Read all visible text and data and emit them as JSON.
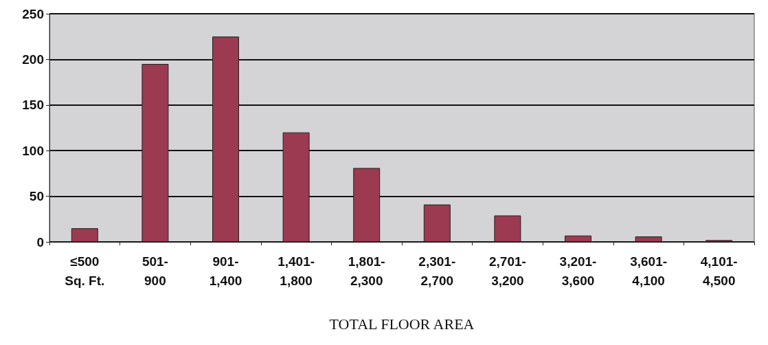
{
  "chart_data": {
    "type": "bar",
    "xlabel": "TOTAL FLOOR AREA",
    "categories": [
      "≤500\nSq. Ft.",
      "501-\n900",
      "901-\n1,400",
      "1,401-\n1,800",
      "1,801-\n2,300",
      "2,301-\n2,700",
      "2,701-\n3,200",
      "3,201-\n3,600",
      "3,601-\n4,100",
      "4,101-\n4,500"
    ],
    "values": [
      15,
      195,
      225,
      120,
      81,
      41,
      29,
      7,
      6,
      2
    ],
    "color": "#9b3a50",
    "ylim": [
      0,
      250
    ],
    "yticks": [
      0,
      50,
      100,
      150,
      200,
      250
    ],
    "grid": "y"
  }
}
